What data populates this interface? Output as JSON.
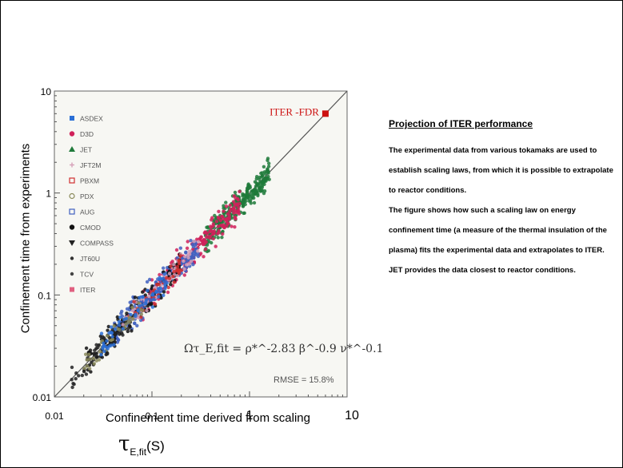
{
  "chart_data": {
    "type": "scatter",
    "xlabel": "Confinement time derived from scaling",
    "xlabel_symbol": "τ",
    "xlabel_subscript": "E,fit",
    "xlabel_argument": "(S)",
    "ylabel": "Confinement time from experiments",
    "x_scale": "log",
    "y_scale": "log",
    "xlim": [
      0.01,
      10
    ],
    "ylim": [
      0.01,
      10
    ],
    "x_ticks": [
      "0.01",
      "0.1",
      "1",
      "10"
    ],
    "y_ticks": [
      "0.01",
      "0.1",
      "1",
      "10"
    ],
    "legend_placement": "top-left",
    "legend": [
      {
        "name": "ASDEX",
        "color": "#2a6fd6",
        "marker": "square"
      },
      {
        "name": "D3D",
        "color": "#d0215a",
        "marker": "circle"
      },
      {
        "name": "JET",
        "color": "#1f7a3a",
        "marker": "triangle"
      },
      {
        "name": "JFT2M",
        "color": "#d6a0b8",
        "marker": "plus"
      },
      {
        "name": "PBXM",
        "color": "#d03030",
        "marker": "square-open"
      },
      {
        "name": "PDX",
        "color": "#8a8a5a",
        "marker": "circle-open"
      },
      {
        "name": "AUG",
        "color": "#4060c0",
        "marker": "square-open"
      },
      {
        "name": "CMOD",
        "color": "#111111",
        "marker": "circle"
      },
      {
        "name": "COMPASS",
        "color": "#222222",
        "marker": "triangle-down"
      },
      {
        "name": "JT60U",
        "color": "#333333",
        "marker": "dot"
      },
      {
        "name": "TCV",
        "color": "#444444",
        "marker": "dot"
      },
      {
        "name": "ITER",
        "color": "#e06080",
        "marker": "square"
      }
    ],
    "annotation_iter": {
      "label": "ITER -FDR",
      "x": 6.0,
      "y": 6.0,
      "color": "#cc1111"
    },
    "formula": "Ωτ_E,fit = ρ*^-2.83 β^-0.9 ν*^-0.1",
    "rmse": "RMSE = 15.8%",
    "reference_line": {
      "from": [
        0.01,
        0.01
      ],
      "to": [
        10,
        10
      ]
    },
    "point_clouds": [
      {
        "series": "JET",
        "color": "#1f7a3a",
        "x_range": [
          0.35,
          1.6
        ],
        "spread": 0.13,
        "n": 260
      },
      {
        "series": "D3D",
        "color": "#d0215a",
        "x_range": [
          0.08,
          0.8
        ],
        "spread": 0.14,
        "n": 220
      },
      {
        "series": "AUG",
        "color": "#4060c0",
        "x_range": [
          0.04,
          0.3
        ],
        "spread": 0.14,
        "n": 200
      },
      {
        "series": "CMOD",
        "color": "#111111",
        "x_range": [
          0.02,
          0.2
        ],
        "spread": 0.12,
        "n": 160
      },
      {
        "series": "COMPASS",
        "color": "#222222",
        "x_range": [
          0.015,
          0.06
        ],
        "spread": 0.12,
        "n": 40
      },
      {
        "series": "JFT2M",
        "color": "#d6a0b8",
        "x_range": [
          0.05,
          0.3
        ],
        "spread": 0.12,
        "n": 60
      },
      {
        "series": "PBXM",
        "color": "#d03030",
        "x_range": [
          0.05,
          0.2
        ],
        "spread": 0.12,
        "n": 40
      },
      {
        "series": "PDX",
        "color": "#8a8a5a",
        "x_range": [
          0.02,
          0.08
        ],
        "spread": 0.12,
        "n": 40
      },
      {
        "series": "ASDEX",
        "color": "#2a6fd6",
        "x_range": [
          0.03,
          0.15
        ],
        "spread": 0.12,
        "n": 60
      }
    ]
  },
  "panel": {
    "title": "Projection of ITER performance",
    "paragraphs": [
      "The experimental data from various tokamaks are used to establish scaling laws, from which it is possible  to extrapolate to reactor conditions.",
      "The figure shows how such a scaling law on energy confinement time (a measure of the thermal insulation of the plasma) fits the experimental data and extrapolates to ITER. JET provides the data closest to reactor conditions."
    ]
  }
}
